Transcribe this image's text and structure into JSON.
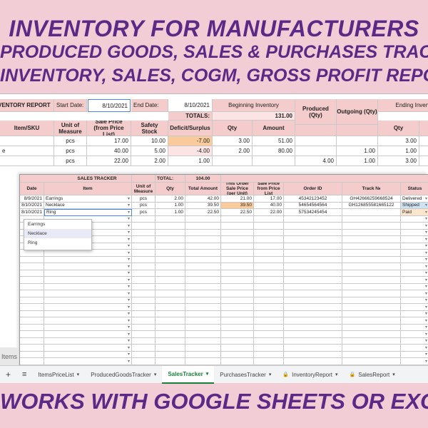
{
  "banner": {
    "line1": "INVENTORY FOR MANUFACTURERS",
    "line2": "PRODUCED GOODS, SALES & PURCHASES TRACKER",
    "line3": "INVENTORY, SALES, COGM, GROSS PROFIT REPORT",
    "footer": "WORKS WITH GOOGLE SHEETS OR EXCEL"
  },
  "inventory_report": {
    "title": "INVENTORY REPORT",
    "start_label": "Start Date:",
    "start_value": "8/10/2021",
    "end_label": "End Date:",
    "end_value": "8/10/2021",
    "beginning_label": "Beginning Inventory",
    "totals_label": "TOTALS:",
    "totals_value": "131.00",
    "produced_label": "Produced (Qty)",
    "outgoing_label": "Outgoing (Qty)",
    "ending_label": "Ending Inventory",
    "headers": [
      "Item/SKU",
      "Unit of Measure",
      "Sale Price (from Price List)",
      "Safety Stock",
      "Deficit/Surplus",
      "Qty",
      "Amount",
      "Qty"
    ],
    "rows": [
      {
        "item": "",
        "uom": "pcs",
        "price": "17.00",
        "safety": "10.00",
        "deficit": "-7.00",
        "qty": "3.00",
        "amount": "51.00",
        "produced": "",
        "outgoing": "",
        "end_qty": "3.00"
      },
      {
        "item": "e",
        "uom": "pcs",
        "price": "40.00",
        "safety": "5.00",
        "deficit": "-4.00",
        "qty": "2.00",
        "amount": "80.00",
        "produced": "",
        "outgoing": "1.00",
        "end_qty": "1.00"
      },
      {
        "item": "",
        "uom": "pcs",
        "price": "22.00",
        "safety": "2.00",
        "deficit": "1.00",
        "qty": "",
        "amount": "",
        "produced": "4.00",
        "outgoing": "1.00",
        "end_qty": "3.00"
      }
    ]
  },
  "sales_tracker": {
    "title": "SALES TRACKER",
    "total_label": "TOTAL:",
    "total_value": "104.00",
    "headers": [
      "Date",
      "Item",
      "Unit of Measure",
      "Qty",
      "Total Amount",
      "This Order Sale Price (per Unit)",
      "Sale Price from Price List",
      "Order ID",
      "Track №",
      "Status"
    ],
    "rows": [
      {
        "date": "8/9/2021",
        "item": "Earrings",
        "uom": "pcs",
        "qty": "2.00",
        "total": "42.00",
        "order_price": "21.00",
        "list_price": "17.00",
        "order_id": "45342123452",
        "track": "GH426662596685​24",
        "status": "Delivered"
      },
      {
        "date": "8/10/2021",
        "item": "Necklace",
        "uom": "pcs",
        "qty": "1.00",
        "total": "39.50",
        "order_price": "39.50",
        "list_price": "40.00",
        "order_id": "54654564564",
        "track": "GH126855581665122",
        "status": "Shipped"
      },
      {
        "date": "8/10/2021",
        "item": "Ring",
        "uom": "pcs",
        "qty": "1.00",
        "total": "22.50",
        "order_price": "22.50",
        "list_price": "22.00",
        "order_id": "57534245454",
        "track": "",
        "status": "Paid"
      }
    ],
    "dropdown_options": [
      "Earrings",
      "Necklace",
      "Ring"
    ]
  },
  "tabs": {
    "add": "+",
    "menu": "≡",
    "items": [
      {
        "label": "ItemsPriceList",
        "active": false,
        "locked": false
      },
      {
        "label": "ProducedGoodsTracker",
        "active": false,
        "locked": false
      },
      {
        "label": "SalesTracker",
        "active": true,
        "locked": false
      },
      {
        "label": "PurchasesTracker",
        "active": false,
        "locked": false
      },
      {
        "label": "InventoryReport",
        "active": false,
        "locked": true
      },
      {
        "label": "SalesReport",
        "active": false,
        "locked": true
      }
    ],
    "side_label": "Items"
  },
  "colors": {
    "banner_text": "#5b2a86",
    "background": "#f3cdd6",
    "header_fill": "#f4cccc",
    "active_tab": "#188038"
  }
}
